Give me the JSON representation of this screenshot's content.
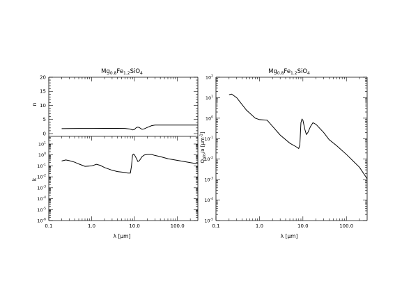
{
  "chart_data": [
    {
      "type": "line",
      "panel": "n",
      "title": "Mg0.8Fe1.2SiO4",
      "title_parts": {
        "elem1": "Mg",
        "sub1": "0.8",
        "elem2": "Fe",
        "sub2": "1.2",
        "elem3": "SiO",
        "sub3": "4"
      },
      "xlabel": "",
      "ylabel": "n",
      "xscale": "log",
      "xlim": [
        0.1,
        300
      ],
      "ylim": [
        -1,
        20
      ],
      "yticks": [
        0,
        5,
        10,
        15,
        20
      ],
      "ytick_labels": [
        "0",
        "5",
        "10",
        "15",
        "20"
      ],
      "series": [
        {
          "x": [
            0.2,
            0.3,
            0.5,
            1.0,
            2.0,
            4.0,
            6.0,
            8.0,
            9.0,
            10.0,
            11.0,
            12.0,
            13.0,
            15.0,
            17.0,
            20.0,
            25.0,
            30.0,
            50.0,
            100.0,
            300.0
          ],
          "y": [
            1.75,
            1.78,
            1.8,
            1.82,
            1.85,
            1.85,
            1.82,
            1.6,
            1.3,
            1.5,
            2.1,
            2.3,
            2.1,
            1.5,
            1.7,
            2.2,
            2.8,
            3.0,
            3.0,
            3.0,
            3.0
          ]
        }
      ]
    },
    {
      "type": "line",
      "panel": "k",
      "xlabel": "",
      "ylabel": "k",
      "xscale": "log",
      "yscale": "log",
      "xlim": [
        0.1,
        300
      ],
      "ylim": [
        1e-06,
        50
      ],
      "yticks": [
        10,
        1,
        0.1,
        0.01,
        0.001,
        0.0001,
        1e-05,
        1e-06
      ],
      "ytick_labels": [
        {
          "base": "10",
          "exp": "1"
        },
        {
          "base": "10",
          "exp": "0"
        },
        {
          "base": "10",
          "exp": "-1"
        },
        {
          "base": "10",
          "exp": "-2"
        },
        {
          "base": "10",
          "exp": "-3"
        },
        {
          "base": "10",
          "exp": "-4"
        },
        {
          "base": "10",
          "exp": "-5"
        },
        {
          "base": "10",
          "exp": "-6"
        }
      ],
      "xticks": [
        0.1,
        1.0,
        10.0,
        100.0
      ],
      "xtick_labels": [
        "0.1",
        "1.0",
        "10.0",
        "100.0"
      ],
      "xaxis_label": {
        "symbol": "λ",
        "unit": "[μm]"
      },
      "series": [
        {
          "x": [
            0.2,
            0.25,
            0.3,
            0.4,
            0.5,
            0.7,
            1.0,
            1.3,
            1.6,
            2.0,
            3.0,
            4.0,
            6.0,
            7.0,
            8.0,
            8.5,
            9.0,
            9.5,
            10.0,
            11.0,
            12.0,
            13.0,
            15.0,
            17.0,
            20.0,
            25.0,
            30.0,
            40.0,
            60.0,
            100.0,
            300.0
          ],
          "y": [
            0.28,
            0.35,
            0.3,
            0.22,
            0.15,
            0.09,
            0.1,
            0.14,
            0.11,
            0.07,
            0.04,
            0.03,
            0.025,
            0.022,
            0.022,
            0.1,
            1.0,
            1.2,
            1.0,
            0.5,
            0.25,
            0.3,
            0.7,
            1.0,
            1.1,
            1.1,
            0.9,
            0.7,
            0.45,
            0.32,
            0.15
          ]
        }
      ]
    },
    {
      "type": "line",
      "panel": "qabs",
      "title": "Mg0.8Fe1.2SiO4",
      "title_parts": {
        "elem1": "Mg",
        "sub1": "0.8",
        "elem2": "Fe",
        "sub2": "1.2",
        "elem3": "SiO",
        "sub3": "4"
      },
      "ylabel": "Qabs/a [μm-1]",
      "ylabel_parts": {
        "q": "Q",
        "sub": "abs",
        "rest": "/a [μm",
        "sup": "-1",
        "close": "]"
      },
      "xscale": "log",
      "yscale": "log",
      "xlim": [
        0.1,
        300
      ],
      "ylim": [
        1e-05,
        100
      ],
      "yticks": [
        100,
        10,
        1,
        0.1,
        0.01,
        0.001,
        0.0001,
        1e-05
      ],
      "ytick_labels": [
        {
          "base": "10",
          "exp": "2"
        },
        {
          "base": "10",
          "exp": "1"
        },
        {
          "base": "10",
          "exp": "0"
        },
        {
          "base": "10",
          "exp": "-1"
        },
        {
          "base": "10",
          "exp": "-2"
        },
        {
          "base": "10",
          "exp": "-3"
        },
        {
          "base": "10",
          "exp": "-4"
        },
        {
          "base": "10",
          "exp": "-5"
        }
      ],
      "xticks": [
        0.1,
        1.0,
        10.0,
        100.0
      ],
      "xtick_labels": [
        "0.1",
        "1.0",
        "10.0",
        "100.0"
      ],
      "xaxis_label": {
        "symbol": "λ",
        "unit": "[μm]"
      },
      "series": [
        {
          "x": [
            0.2,
            0.23,
            0.3,
            0.5,
            0.8,
            1.0,
            1.5,
            2.0,
            3.0,
            5.0,
            7.0,
            8.0,
            8.5,
            9.0,
            9.5,
            10.0,
            11.0,
            12.0,
            13.0,
            15.0,
            17.0,
            20.0,
            30.0,
            40.0,
            60.0,
            100.0,
            200.0,
            300.0
          ],
          "y": [
            14.0,
            15.0,
            10.0,
            2.5,
            1.0,
            0.85,
            0.8,
            0.4,
            0.15,
            0.06,
            0.04,
            0.033,
            0.05,
            0.6,
            0.9,
            0.8,
            0.3,
            0.16,
            0.2,
            0.4,
            0.6,
            0.5,
            0.2,
            0.09,
            0.045,
            0.017,
            0.004,
            0.0011
          ]
        }
      ]
    }
  ]
}
